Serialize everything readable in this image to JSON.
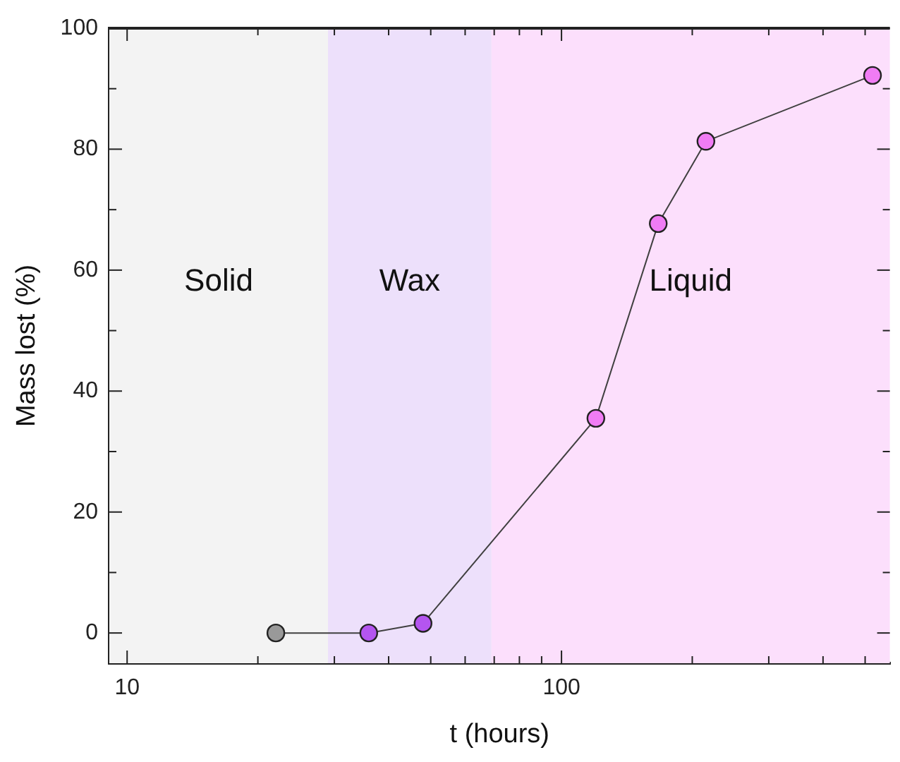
{
  "chart_data": {
    "type": "line",
    "xlabel": "t (hours)",
    "ylabel": "Mass lost (%)",
    "log": "x",
    "grid": false,
    "legend": false,
    "marker": "circle",
    "line_style": "solid",
    "xlim": [
      9.1,
      570
    ],
    "xticks": [
      10,
      {
        "value": 20,
        "label": null
      },
      {
        "value": 30,
        "label": null
      },
      {
        "value": 40,
        "label": null
      },
      {
        "value": 50,
        "label": null
      },
      {
        "value": 60,
        "label": null
      },
      {
        "value": 70,
        "label": null
      },
      {
        "value": 80,
        "label": null
      },
      {
        "value": 90,
        "label": null
      },
      100,
      {
        "value": 200,
        "label": null
      },
      {
        "value": 300,
        "label": null
      },
      {
        "value": 400,
        "label": null
      },
      {
        "value": 500,
        "label": null
      }
    ],
    "ylim": [
      -5,
      100
    ],
    "yticks": [
      0,
      {
        "value": 10,
        "label": null
      },
      20,
      {
        "value": 30,
        "label": null
      },
      40,
      {
        "value": 50,
        "label": null
      },
      60,
      {
        "value": 70,
        "label": null
      },
      80,
      {
        "value": 90,
        "label": null
      },
      100
    ],
    "x": [
      22,
      36,
      48,
      120,
      167,
      215,
      520
    ],
    "series": [
      {
        "color": "#404040",
        "colors": [
          "#999999",
          "#b455f0",
          "#b455f0",
          "#f07cf4",
          "#f07cf4",
          "#f07cf4",
          "#f07cf4"
        ],
        "values": [
          0,
          0,
          1.6,
          35.5,
          67.7,
          81.3,
          92.2
        ]
      }
    ],
    "bands": [
      {
        "axis": "x",
        "from": 9.1,
        "to": 29,
        "label": "Solid",
        "color": "#f3f3f3"
      },
      {
        "axis": "x",
        "from": 29,
        "to": 69,
        "label": "Wax",
        "color": "#ede0fb"
      },
      {
        "axis": "x",
        "from": 69,
        "to": 570,
        "label": "Liquid",
        "color": "#fcdffc"
      }
    ]
  }
}
